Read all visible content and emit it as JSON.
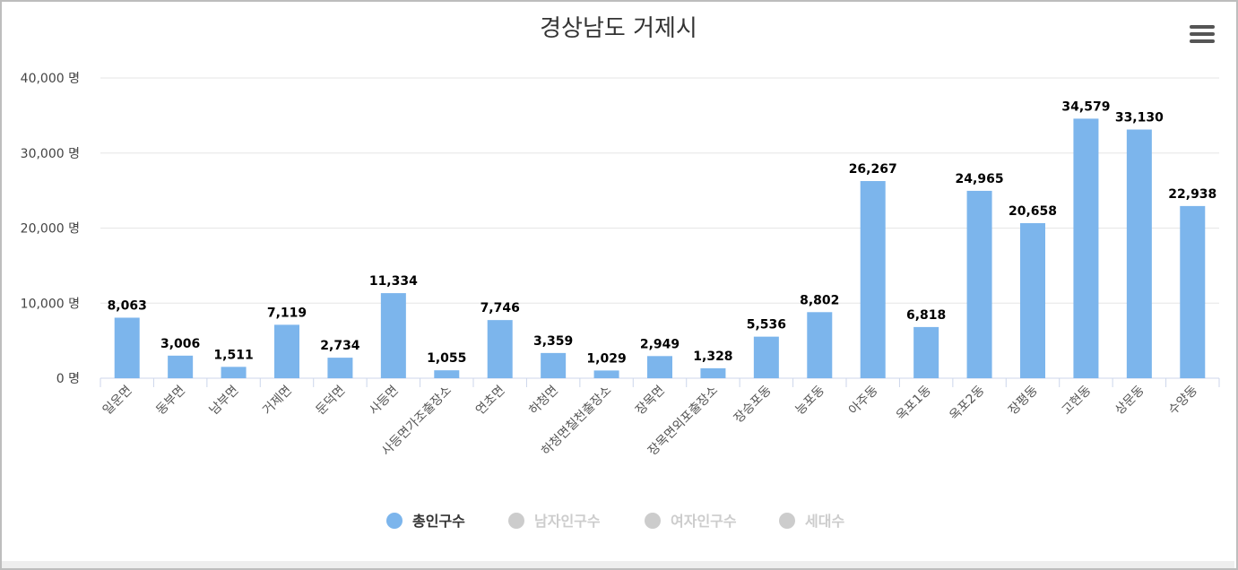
{
  "colors": {
    "bar": "#7cb5ec",
    "legend_active_text": "#333333",
    "legend_inactive": "#cccccc",
    "grid": "#e6e6e6",
    "axis": "#ccd6eb"
  },
  "menu": {
    "icon": "hamburger-menu-icon"
  },
  "chart_data": {
    "type": "bar",
    "title": "경상남도 거제시",
    "y_unit_suffix": " 명",
    "ylim": [
      0,
      40000
    ],
    "yticks": [
      0,
      10000,
      20000,
      30000,
      40000
    ],
    "ytick_labels": [
      "0 명",
      "10,000 명",
      "20,000 명",
      "30,000 명",
      "40,000 명"
    ],
    "grid": true,
    "legend_position": "bottom-center",
    "categories": [
      "일운면",
      "동부면",
      "남부면",
      "거제면",
      "둔덕면",
      "사등면",
      "사등면가조출장소",
      "연초면",
      "하청면",
      "하청면칠천출장소",
      "장목면",
      "장목면외포출장소",
      "장승포동",
      "능포동",
      "아주동",
      "옥포1동",
      "옥포2동",
      "장평동",
      "고현동",
      "상문동",
      "수양동"
    ],
    "series": [
      {
        "name": "총인구수",
        "active": true,
        "values": [
          8063,
          3006,
          1511,
          7119,
          2734,
          11334,
          1055,
          7746,
          3359,
          1029,
          2949,
          1328,
          5536,
          8802,
          26267,
          6818,
          24965,
          20658,
          34579,
          33130,
          22938
        ],
        "value_labels": [
          "8,063",
          "3,006",
          "1,511",
          "7,119",
          "2,734",
          "11,334",
          "1,055",
          "7,746",
          "3,359",
          "1,029",
          "2,949",
          "1,328",
          "5,536",
          "8,802",
          "26,267",
          "6,818",
          "24,965",
          "20,658",
          "34,579",
          "33,130",
          "22,938"
        ]
      },
      {
        "name": "남자인구수",
        "active": false
      },
      {
        "name": "여자인구수",
        "active": false
      },
      {
        "name": "세대수",
        "active": false
      }
    ]
  }
}
